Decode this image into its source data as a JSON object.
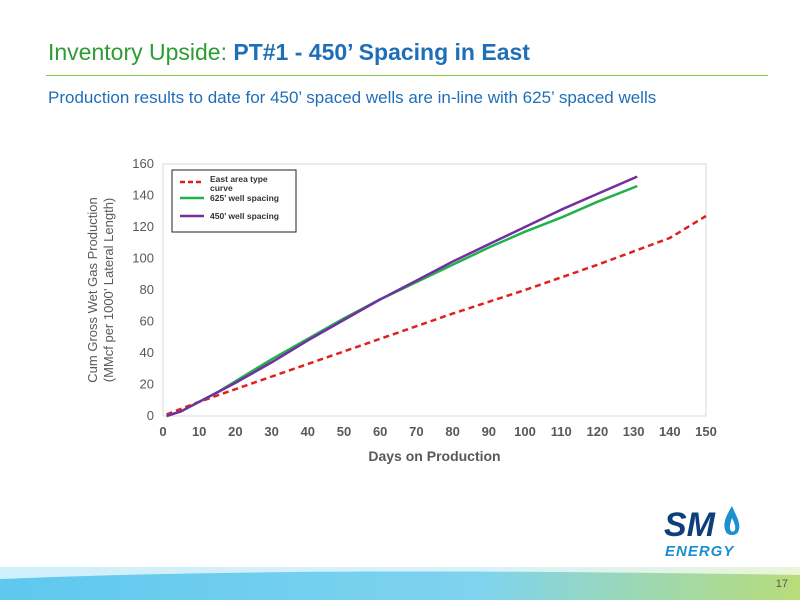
{
  "slide": {
    "title_prefix": "Inventory Upside: ",
    "title_main": "PT#1 - 450’ Spacing in East",
    "subtitle": "Production results to date for 450’ spaced wells are in-line with 625’ spaced wells",
    "page_number": "17"
  },
  "logo": {
    "text_sm": "SM",
    "text_energy": "ENERGY",
    "colors": {
      "sm": "#0d3f7a",
      "energy": "#1b8fd0",
      "flame": "#1b8fd0"
    }
  },
  "colors": {
    "title_green": "#2e9b34",
    "title_blue": "#1f6fb8",
    "rule": "#8cc63f"
  },
  "chart_data": {
    "type": "line",
    "xlabel": "Days on Production",
    "ylabel_line1": "Cum Gross Wet Gas Production",
    "ylabel_line2": "(MMcf per 1000’ Lateral Length)",
    "xlim": [
      0,
      150
    ],
    "ylim": [
      0,
      160
    ],
    "xticks": [
      0,
      10,
      20,
      30,
      40,
      50,
      60,
      70,
      80,
      90,
      100,
      110,
      120,
      130,
      140,
      150
    ],
    "yticks": [
      0,
      20,
      40,
      60,
      80,
      100,
      120,
      140,
      160
    ],
    "grid": false,
    "legend_position": "top-left",
    "series": [
      {
        "name": "East area type curve",
        "color": "#e02020",
        "style": "dashed",
        "x": [
          1,
          10,
          20,
          40,
          60,
          80,
          100,
          120,
          140,
          150
        ],
        "y": [
          1,
          9,
          17,
          33,
          49,
          65,
          80,
          96,
          113,
          127
        ]
      },
      {
        "name": "625’ well spacing",
        "color": "#22b04a",
        "style": "solid",
        "x": [
          1,
          5,
          10,
          15,
          20,
          30,
          40,
          50,
          60,
          70,
          80,
          90,
          100,
          110,
          120,
          131
        ],
        "y": [
          0,
          3,
          9,
          15,
          22,
          36,
          49,
          62,
          74,
          85,
          96,
          107,
          117,
          126,
          136,
          146
        ]
      },
      {
        "name": "450’ well spacing",
        "color": "#7030a0",
        "style": "solid",
        "x": [
          1,
          5,
          10,
          15,
          20,
          30,
          40,
          50,
          60,
          70,
          80,
          90,
          100,
          110,
          120,
          131
        ],
        "y": [
          0,
          3,
          9,
          15,
          21,
          34,
          48,
          61,
          74,
          86,
          98,
          109,
          120,
          131,
          141,
          152
        ]
      }
    ]
  }
}
